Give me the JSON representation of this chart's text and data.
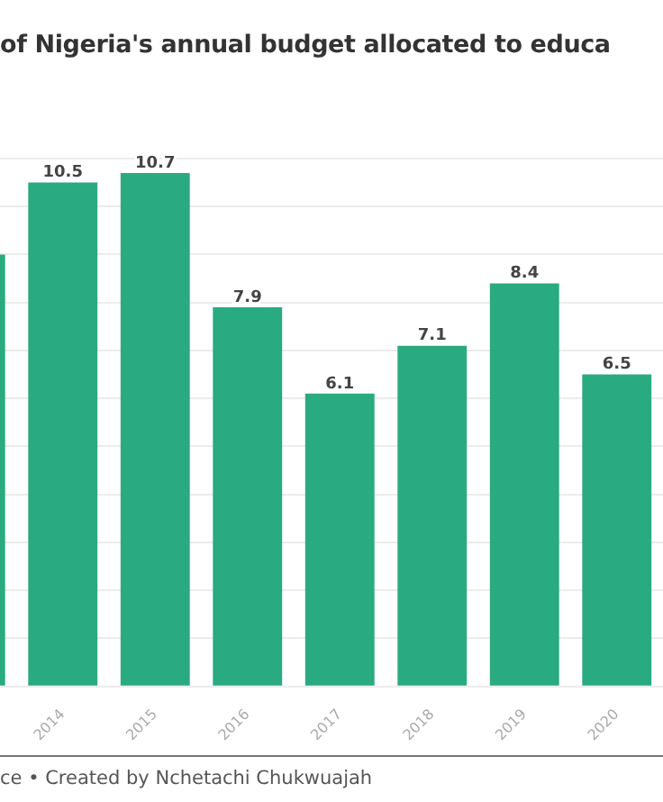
{
  "chart_data": {
    "type": "bar",
    "title": "of Nigeria's annual budget allocated to educa",
    "annotations": [
      "ce • Created by Nchetachi Chukwuajah"
    ],
    "categories": [
      null,
      "2014",
      "2015",
      "2016",
      "2017",
      "2018",
      "2019",
      "2020"
    ],
    "values": [
      9.0,
      10.5,
      10.7,
      7.9,
      6.1,
      7.1,
      8.4,
      6.5
    ],
    "value_labels": [
      null,
      "10.5",
      "10.7",
      "7.9",
      "6.1",
      "7.1",
      "8.4",
      "6.5"
    ],
    "color": "#2aaa80",
    "ylim": [
      0,
      11
    ],
    "yticks": [
      {
        "value": 0,
        "label": null
      },
      {
        "value": 1,
        "label": null
      },
      {
        "value": 2,
        "label": null
      },
      {
        "value": 3,
        "label": null
      },
      {
        "value": 4,
        "label": null
      },
      {
        "value": 5,
        "label": null
      },
      {
        "value": 6,
        "label": null
      },
      {
        "value": 7,
        "label": null
      },
      {
        "value": 8,
        "label": null
      },
      {
        "value": 9,
        "label": null
      },
      {
        "value": 10,
        "label": null
      },
      {
        "value": 11,
        "label": null
      }
    ],
    "grid": "y",
    "tick_labels": "x"
  }
}
